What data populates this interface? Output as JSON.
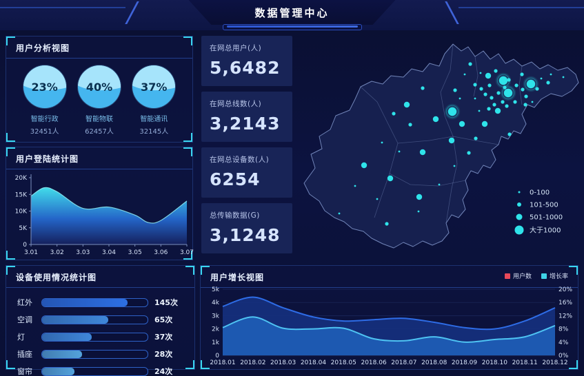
{
  "header": {
    "title": "数据管理中心"
  },
  "colors": {
    "accent_cyan": "#3ad6f0",
    "panel_border": "#1c3170",
    "background": "#0c1238",
    "users_series": "#2e6ce6",
    "growth_series": "#4ec3f2",
    "legend_red": "#e8495a",
    "legend_cyan": "#3fd2e6",
    "map_point": "#2fe3ea"
  },
  "panels": {
    "analysis": {
      "title": "用户分析视图"
    },
    "login": {
      "title": "用户登陆统计图"
    },
    "device": {
      "title": "设备使用情况统计图"
    },
    "growth": {
      "title": "用户增长视图"
    }
  },
  "analysis": {
    "gauges": [
      {
        "pct": "23%",
        "label": "智能行政",
        "count": "32451人"
      },
      {
        "pct": "40%",
        "label": "智能物联",
        "count": "62457人"
      },
      {
        "pct": "37%",
        "label": "智能通讯",
        "count": "32145人"
      }
    ]
  },
  "kpis": [
    {
      "label": "在网总用户(人)",
      "value": "5,6482"
    },
    {
      "label": "在网总线数(人)",
      "value": "3,2143"
    },
    {
      "label": "在网总设备数(人)",
      "value": "6254"
    },
    {
      "label": "总传输数据(G)",
      "value": "3,1248"
    }
  ],
  "chart_data": [
    {
      "id": "login",
      "type": "area",
      "title": "用户登陆统计图",
      "x_ticks": [
        "3.01",
        "3.02",
        "3.03",
        "3.04",
        "3.05",
        "3.06",
        "3.07"
      ],
      "y_ticks": [
        "0",
        "5K",
        "10K",
        "15K",
        "20K"
      ],
      "ylim": [
        0,
        20000
      ],
      "x_fine": [
        0,
        0.5,
        1,
        2,
        3,
        4,
        4.5,
        5,
        6
      ],
      "values": [
        14500,
        17000,
        15800,
        10800,
        11200,
        8800,
        6600,
        7200,
        13000
      ]
    },
    {
      "id": "device",
      "type": "bar",
      "title": "设备使用情况统计图",
      "categories": [
        "红外",
        "空调",
        "灯",
        "插座",
        "窗帘"
      ],
      "values": [
        145,
        65,
        37,
        28,
        24
      ],
      "unit": "次",
      "value_labels": [
        "145次",
        "65次",
        "37次",
        "28次",
        "24次"
      ],
      "bar_pcts": [
        81,
        63,
        47,
        38,
        31
      ],
      "bar_colors": [
        "#2d6fe3",
        "#3f87d9",
        "#3f87d9",
        "#54a3dc",
        "#54a3dc"
      ]
    },
    {
      "id": "growth",
      "type": "area",
      "title": "用户增长视图",
      "legend": [
        "用户数",
        "增长率"
      ],
      "categories": [
        "2018.01",
        "2018.02",
        "2018.03",
        "2018.04",
        "2018.05",
        "2018.06",
        "2018.07",
        "2018.08",
        "2018.09",
        "2018.10",
        "2018.11",
        "2018.12"
      ],
      "y_left_ticks": [
        "0",
        "1k",
        "2k",
        "3k",
        "4k",
        "5k"
      ],
      "y_right_ticks": [
        "0%",
        "4%",
        "8%",
        "12%",
        "16%",
        "20%"
      ],
      "ylim_left": [
        0,
        5000
      ],
      "ylim_right": [
        0,
        20
      ],
      "series": [
        {
          "name": "用户数",
          "axis": "left",
          "values": [
            3700,
            4400,
            3600,
            2900,
            2600,
            2700,
            2800,
            2500,
            2100,
            2000,
            2600,
            3600
          ]
        },
        {
          "name": "增长率",
          "axis": "right",
          "values": [
            8.4,
            11.6,
            8.2,
            8.0,
            8.2,
            5.0,
            4.4,
            5.6,
            4.0,
            4.8,
            5.6,
            9.0
          ]
        }
      ]
    },
    {
      "id": "map",
      "type": "scatter-map",
      "legend": [
        {
          "label": "0-100",
          "size": 1
        },
        {
          "label": "101-500",
          "size": 2
        },
        {
          "label": "501-1000",
          "size": 3
        },
        {
          "label": "大于1000",
          "size": 4
        }
      ],
      "points": [
        [
          233,
          83,
          2
        ],
        [
          255,
          45,
          2
        ],
        [
          262,
          75,
          2
        ],
        [
          270,
          58,
          1
        ],
        [
          281,
          62,
          3
        ],
        [
          292,
          55,
          2
        ],
        [
          303,
          69,
          4
        ],
        [
          283,
          76,
          2
        ],
        [
          271,
          81,
          2
        ],
        [
          277,
          89,
          2
        ],
        [
          286,
          94,
          2
        ],
        [
          296,
          87,
          2
        ],
        [
          305,
          79,
          2
        ],
        [
          311,
          68,
          2
        ],
        [
          322,
          76,
          2
        ],
        [
          331,
          82,
          2
        ],
        [
          336,
          92,
          2
        ],
        [
          343,
          74,
          4
        ],
        [
          352,
          81,
          2
        ],
        [
          330,
          60,
          2
        ],
        [
          310,
          87,
          4
        ],
        [
          358,
          66,
          1
        ],
        [
          372,
          60,
          1
        ],
        [
          390,
          64,
          1
        ],
        [
          368,
          72,
          2
        ],
        [
          335,
          104,
          2
        ],
        [
          345,
          100,
          1
        ],
        [
          320,
          100,
          2
        ],
        [
          302,
          100,
          2
        ],
        [
          290,
          104,
          2
        ],
        [
          282,
          110,
          2
        ],
        [
          295,
          113,
          3
        ],
        [
          308,
          106,
          2
        ],
        [
          268,
          113,
          1
        ],
        [
          262,
          95,
          1
        ],
        [
          247,
          60,
          1
        ],
        [
          240,
          95,
          1
        ],
        [
          229,
          114,
          4
        ],
        [
          205,
          125,
          3
        ],
        [
          186,
          80,
          2
        ],
        [
          163,
          104,
          3
        ],
        [
          144,
          117,
          2
        ],
        [
          168,
          133,
          2
        ],
        [
          243,
          132,
          3
        ],
        [
          276,
          132,
          3
        ],
        [
          263,
          153,
          2
        ],
        [
          228,
          156,
          3
        ],
        [
          312,
          147,
          2
        ],
        [
          186,
          173,
          3
        ],
        [
          127,
          159,
          1
        ],
        [
          152,
          172,
          1
        ],
        [
          101,
          192,
          3
        ],
        [
          139,
          211,
          3
        ],
        [
          88,
          222,
          1
        ],
        [
          120,
          241,
          1
        ],
        [
          181,
          238,
          3
        ],
        [
          180,
          259,
          1
        ],
        [
          65,
          262,
          1
        ],
        [
          134,
          277,
          2
        ],
        [
          232,
          193,
          1
        ],
        [
          253,
          174,
          2
        ],
        [
          210,
          220,
          1
        ]
      ]
    }
  ]
}
